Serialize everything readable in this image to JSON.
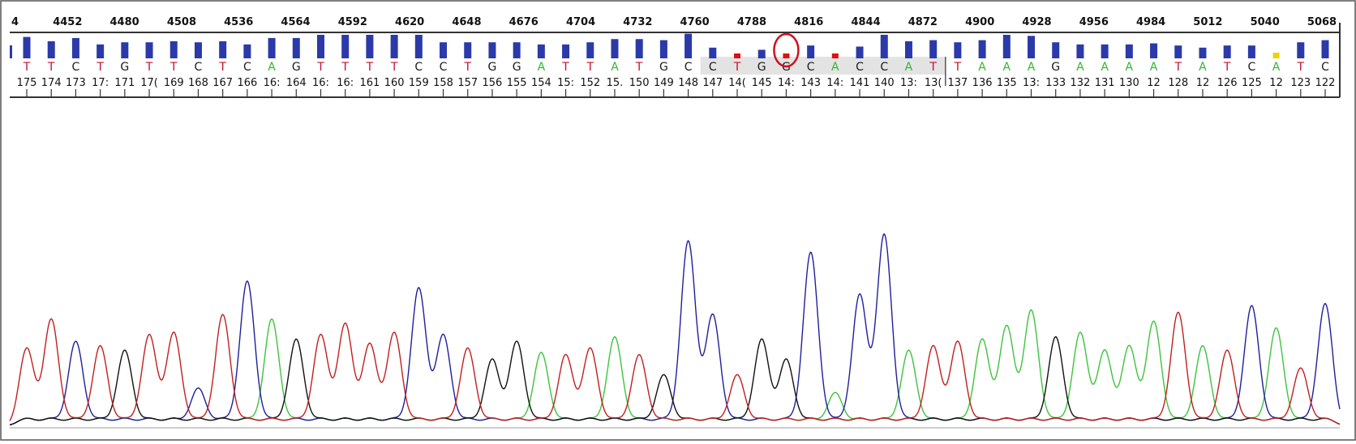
{
  "colors": {
    "A": "#2db82d",
    "C": "#1a1a1a",
    "G": "#1a1a1a",
    "T": "#c8102e",
    "trace_A": "#3cc43c",
    "trace_C": "#1f1f9e",
    "trace_G": "#111111",
    "trace_T": "#c02020",
    "qv_high": "#2b3aa8",
    "qv_low": "#e01010",
    "qv_mid": "#f2d100",
    "circle": "#d01020",
    "highlight": "#d9d9d9"
  },
  "chart_data": {
    "type": "chromatogram",
    "title": "",
    "scan_ruler": [
      "4",
      "4452",
      "4480",
      "4508",
      "4536",
      "4564",
      "4592",
      "4620",
      "4648",
      "4676",
      "4704",
      "4732",
      "4760",
      "4788",
      "4816",
      "4844",
      "4872",
      "4900",
      "4928",
      "4956",
      "4984",
      "5012",
      "5040",
      "5068"
    ],
    "bases": [
      "T",
      "T",
      "C",
      "T",
      "G",
      "T",
      "T",
      "C",
      "T",
      "C",
      "A",
      "G",
      "T",
      "T",
      "T",
      "T",
      "C",
      "C",
      "T",
      "G",
      "G",
      "A",
      "T",
      "T",
      "A",
      "T",
      "G",
      "C",
      "C",
      "T",
      "G",
      "G",
      "C",
      "A",
      "C",
      "C",
      "A",
      "T",
      "T",
      "A",
      "A",
      "A",
      "G",
      "A",
      "A",
      "A",
      "A",
      "T",
      "A",
      "T",
      "C",
      "A",
      "T",
      "C"
    ],
    "positions": [
      "175",
      "174",
      "173",
      "172",
      "171",
      "170",
      "169",
      "168",
      "167",
      "166",
      "165",
      "164",
      "163",
      "162",
      "161",
      "160",
      "159",
      "158",
      "157",
      "156",
      "155",
      "154",
      "153",
      "152",
      "151",
      "150",
      "149",
      "148",
      "147",
      "146",
      "145",
      "144",
      "143",
      "142",
      "141",
      "140",
      "139",
      "138",
      "137",
      "136",
      "135",
      "134",
      "133",
      "132",
      "131",
      "130",
      "129",
      "128",
      "127",
      "126",
      "125",
      "124",
      "123",
      "122"
    ],
    "position_labels": [
      "175",
      "174",
      "173",
      "17:",
      "171",
      "17(",
      "169",
      "168",
      "167",
      "166",
      "16:",
      "164",
      "16:",
      "16:",
      "161",
      "160",
      "159",
      "158",
      "157",
      "156",
      "155",
      "154",
      "15:",
      "152",
      "15.",
      "150",
      "149",
      "148",
      "147",
      "14(",
      "145",
      "14:",
      "143",
      "14:",
      "141",
      "140",
      "13:",
      "13(",
      "137",
      "136",
      "135",
      "13:",
      "133",
      "132",
      "131",
      "130",
      "12",
      "128",
      "12",
      "126",
      "125",
      "12",
      "123",
      "122"
    ],
    "quality": [
      40,
      32,
      38,
      26,
      30,
      30,
      32,
      30,
      32,
      26,
      38,
      38,
      44,
      44,
      44,
      44,
      44,
      30,
      30,
      30,
      30,
      26,
      26,
      30,
      36,
      36,
      34,
      46,
      20,
      10,
      16,
      10,
      24,
      8,
      22,
      44,
      32,
      34,
      30,
      34,
      44,
      42,
      30,
      26,
      26,
      26,
      28,
      24,
      20,
      24,
      24,
      12,
      30,
      34
    ],
    "quality_class": [
      "high",
      "high",
      "high",
      "high",
      "high",
      "high",
      "high",
      "high",
      "high",
      "high",
      "high",
      "high",
      "high",
      "high",
      "high",
      "high",
      "high",
      "high",
      "high",
      "high",
      "high",
      "high",
      "high",
      "high",
      "high",
      "high",
      "high",
      "high",
      "high",
      "low",
      "high",
      "low",
      "high",
      "low",
      "high",
      "high",
      "high",
      "high",
      "high",
      "high",
      "high",
      "high",
      "high",
      "high",
      "high",
      "high",
      "high",
      "high",
      "high",
      "high",
      "high",
      "mid",
      "high",
      "high"
    ],
    "peak_heights": [
      0.35,
      0.48,
      0.38,
      0.36,
      0.34,
      0.41,
      0.42,
      0.17,
      0.5,
      0.65,
      0.48,
      0.39,
      0.41,
      0.46,
      0.37,
      0.42,
      0.62,
      0.41,
      0.35,
      0.3,
      0.38,
      0.33,
      0.32,
      0.35,
      0.4,
      0.32,
      0.23,
      0.83,
      0.5,
      0.23,
      0.39,
      0.3,
      0.78,
      0.15,
      0.59,
      0.86,
      0.34,
      0.36,
      0.38,
      0.39,
      0.45,
      0.52,
      0.4,
      0.42,
      0.34,
      0.36,
      0.47,
      0.51,
      0.36,
      0.34,
      0.54,
      0.44,
      0.26,
      0.55
    ],
    "circled_index": 31,
    "highlight_range": [
      28,
      37
    ]
  }
}
